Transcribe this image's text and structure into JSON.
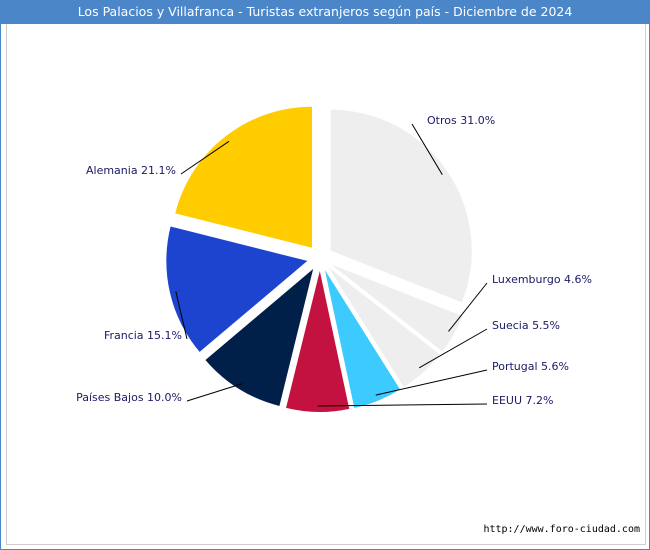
{
  "title": "Los Palacios y Villafranca - Turistas extranjeros según país - Diciembre de 2024",
  "source": "http://www.foro-ciudad.com",
  "chart_data": {
    "type": "pie",
    "title": "Los Palacios y Villafranca - Turistas extranjeros según país - Diciembre de 2024",
    "unit": "%",
    "slices": [
      {
        "name": "Otros",
        "value": 31.0,
        "label": "Otros 31.0%",
        "color": "#eeeeee"
      },
      {
        "name": "Luxemburgo",
        "value": 4.6,
        "label": "Luxemburgo 4.6%",
        "color": "#eeeeee"
      },
      {
        "name": "Suecia",
        "value": 5.5,
        "label": "Suecia 5.5%",
        "color": "#eeeeee"
      },
      {
        "name": "Portugal",
        "value": 5.6,
        "label": "Portugal 5.6%",
        "color": "#3dcbff"
      },
      {
        "name": "EEUU",
        "value": 7.2,
        "label": "EEUU 7.2%",
        "color": "#c41240"
      },
      {
        "name": "Países Bajos",
        "value": 10.0,
        "label": "Países Bajos 10.0%",
        "color": "#001f49"
      },
      {
        "name": "Francia",
        "value": 15.1,
        "label": "Francia 15.1%",
        "color": "#1d44cf"
      },
      {
        "name": "Alemania",
        "value": 21.1,
        "label": "Alemania 21.1%",
        "color": "#ffcc00"
      }
    ]
  }
}
